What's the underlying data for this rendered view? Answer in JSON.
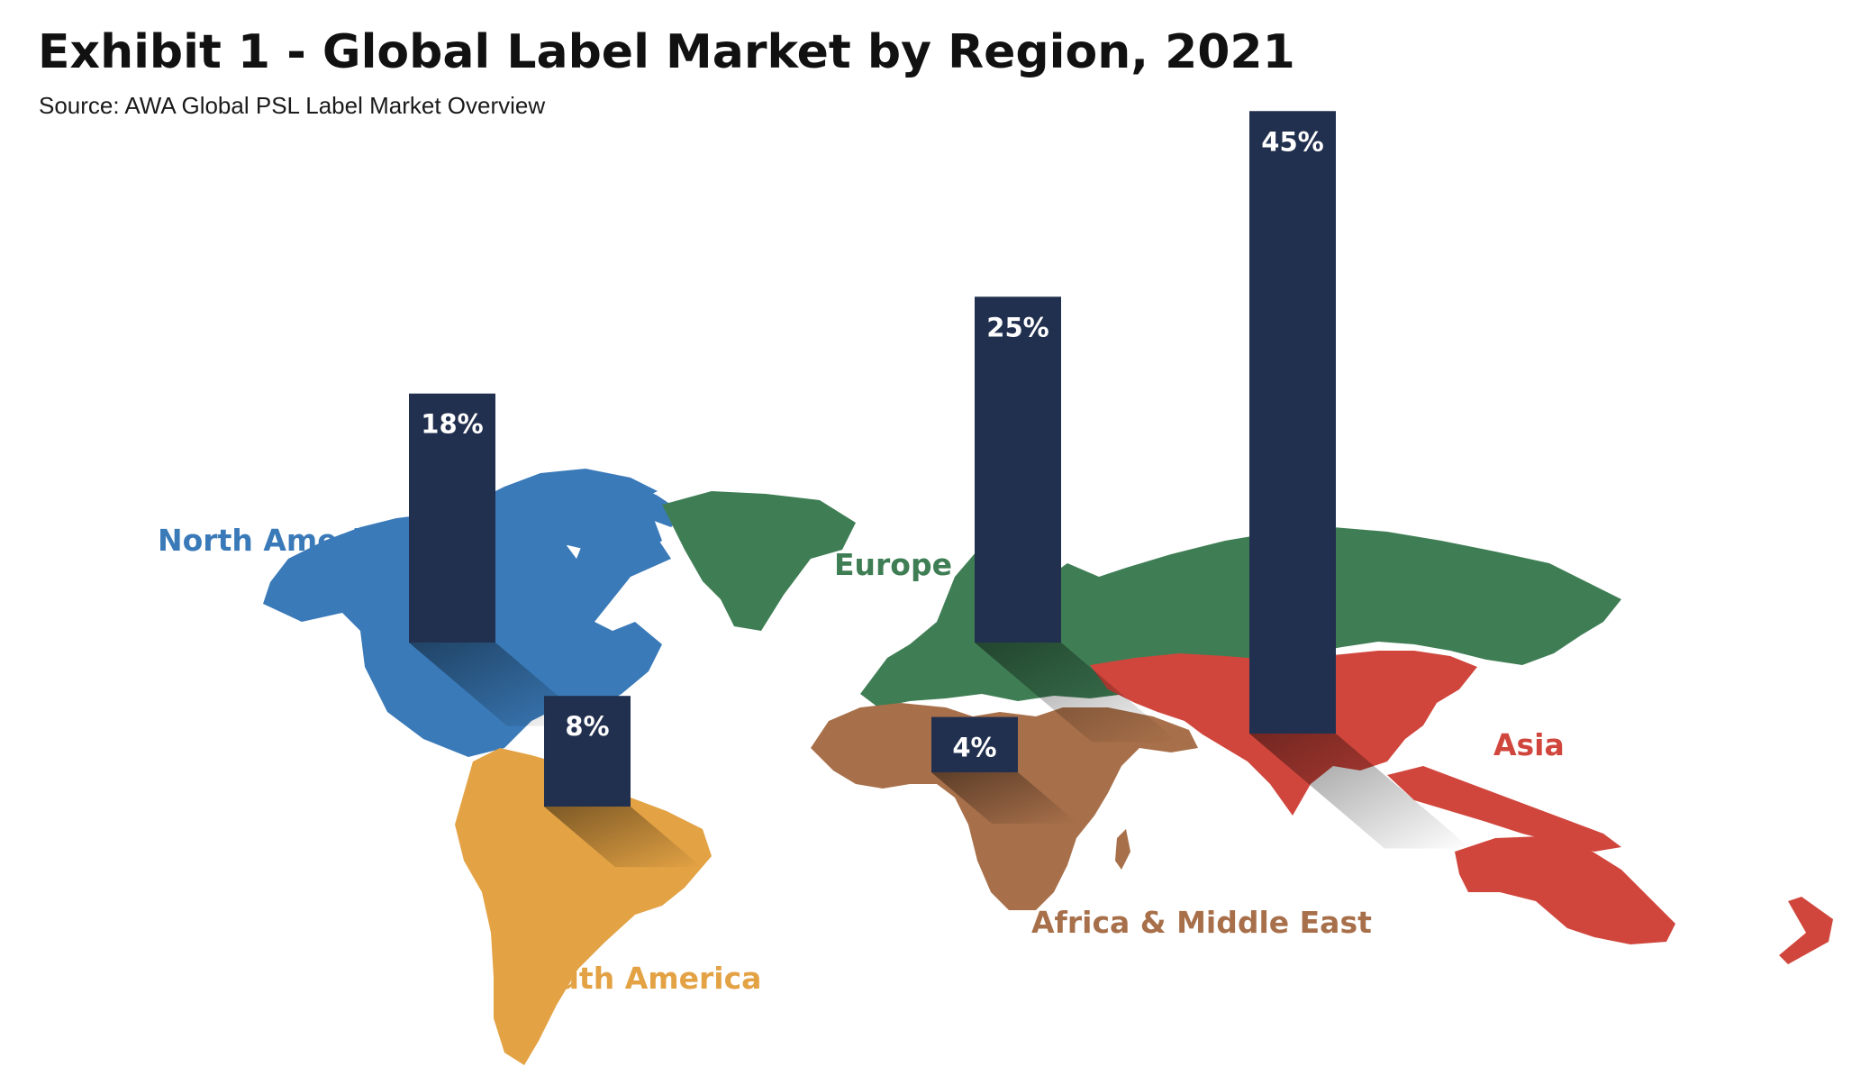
{
  "title": "Exhibit 1 - Global Label Market by Region, 2021",
  "subtitle": "Source: AWA Global PSL Label Market Overview",
  "colors": {
    "bar": "#22304f",
    "north_america": "#3a7ab8",
    "south_america": "#e3a244",
    "europe": "#3f7e55",
    "africa_middle_east": "#a8704a",
    "asia": "#d0463c"
  },
  "chart_data": {
    "type": "bar",
    "categories": [
      "North America",
      "South America",
      "Europe",
      "Africa & Middle East",
      "Asia"
    ],
    "values": [
      18,
      8,
      25,
      4,
      45
    ],
    "value_labels": [
      "18%",
      "8%",
      "25%",
      "4%",
      "45%"
    ],
    "title": "Exhibit 1 - Global Label Market by Region, 2021",
    "subtitle": "Source: AWA Global PSL Label Market Overview",
    "background": "world map",
    "legend": "none",
    "grid": false
  }
}
